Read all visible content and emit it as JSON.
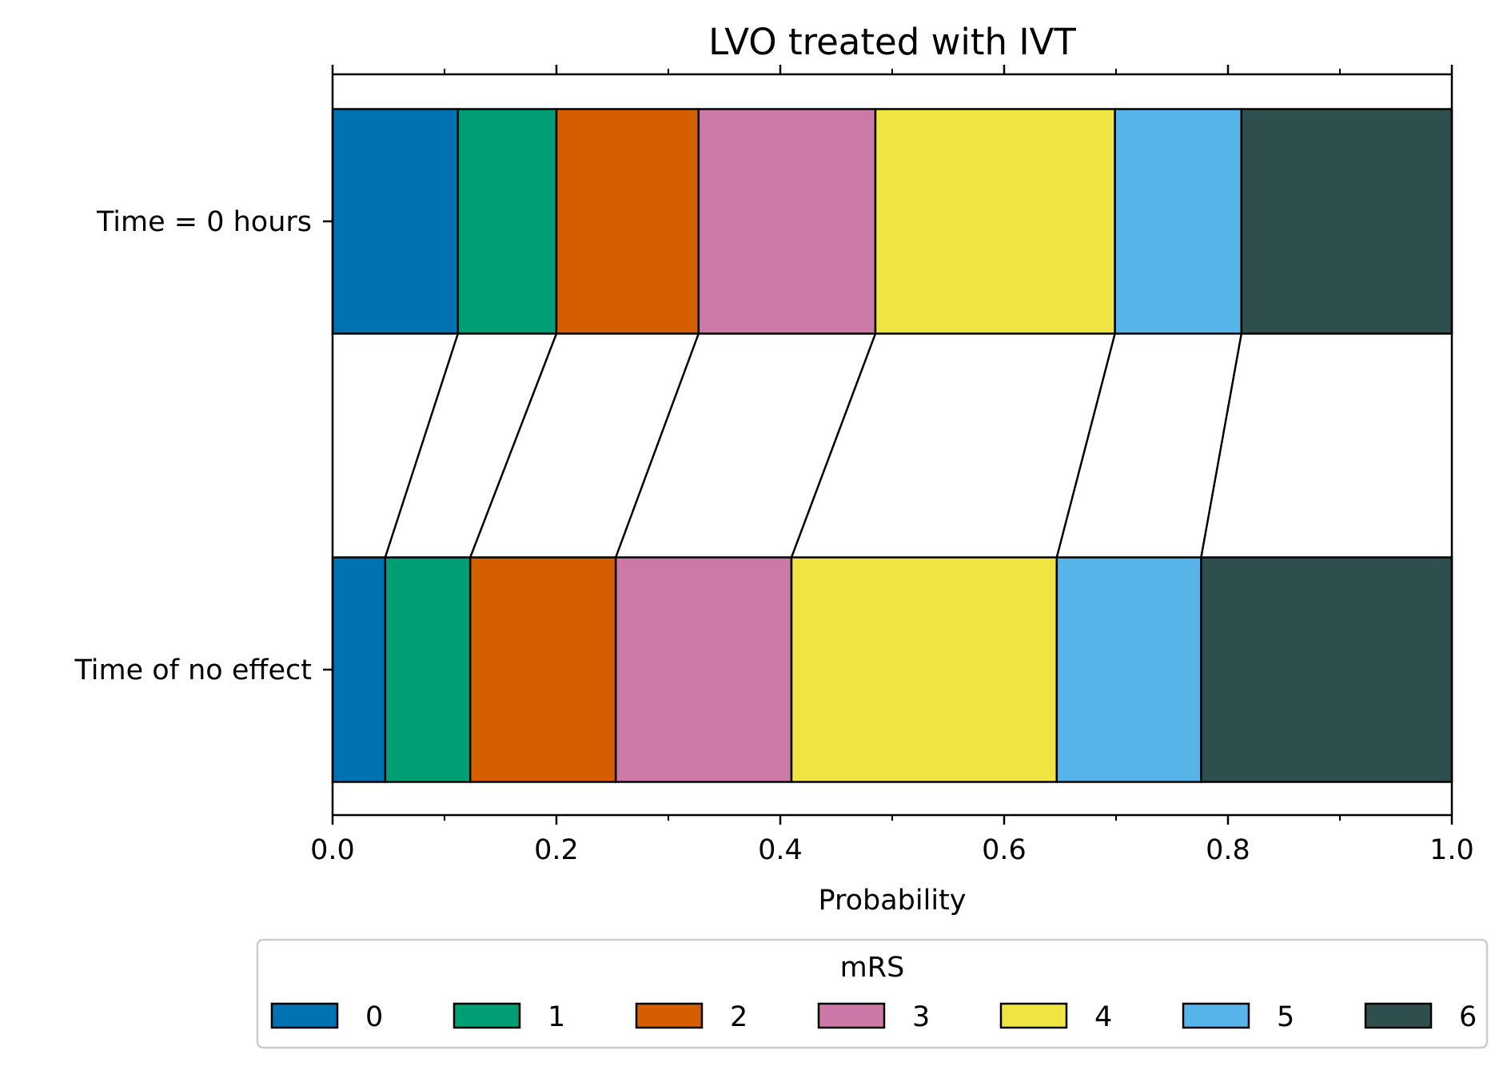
{
  "chart_data": {
    "type": "bar",
    "orientation": "horizontal",
    "stacked": true,
    "title": "LVO treated with IVT",
    "xlabel": "Probability",
    "ylabel": "",
    "xlim": [
      0.0,
      1.0
    ],
    "x_ticks": [
      "0.0",
      "0.2",
      "0.4",
      "0.6",
      "0.8",
      "1.0"
    ],
    "x_minor_ticks": [
      0.1,
      0.3,
      0.5,
      0.7,
      0.9
    ],
    "grid": false,
    "categories": [
      "Time = 0 hours",
      "Time of no effect"
    ],
    "series": [
      {
        "name": "0",
        "color": "#0072b2",
        "values": [
          0.112,
          0.047
        ]
      },
      {
        "name": "1",
        "color": "#009e74",
        "values": [
          0.088,
          0.076
        ]
      },
      {
        "name": "2",
        "color": "#d55e00",
        "values": [
          0.127,
          0.13
        ]
      },
      {
        "name": "3",
        "color": "#cc79a7",
        "values": [
          0.158,
          0.157
        ]
      },
      {
        "name": "4",
        "color": "#f0e442",
        "values": [
          0.214,
          0.237
        ]
      },
      {
        "name": "5",
        "color": "#56b4e9",
        "values": [
          0.113,
          0.129
        ]
      },
      {
        "name": "6",
        "color": "#2f4f4f",
        "values": [
          0.188,
          0.224
        ]
      }
    ],
    "legend": {
      "title": "mRS",
      "placement": "below",
      "labels": [
        "0",
        "1",
        "2",
        "3",
        "4",
        "5",
        "6"
      ]
    }
  }
}
